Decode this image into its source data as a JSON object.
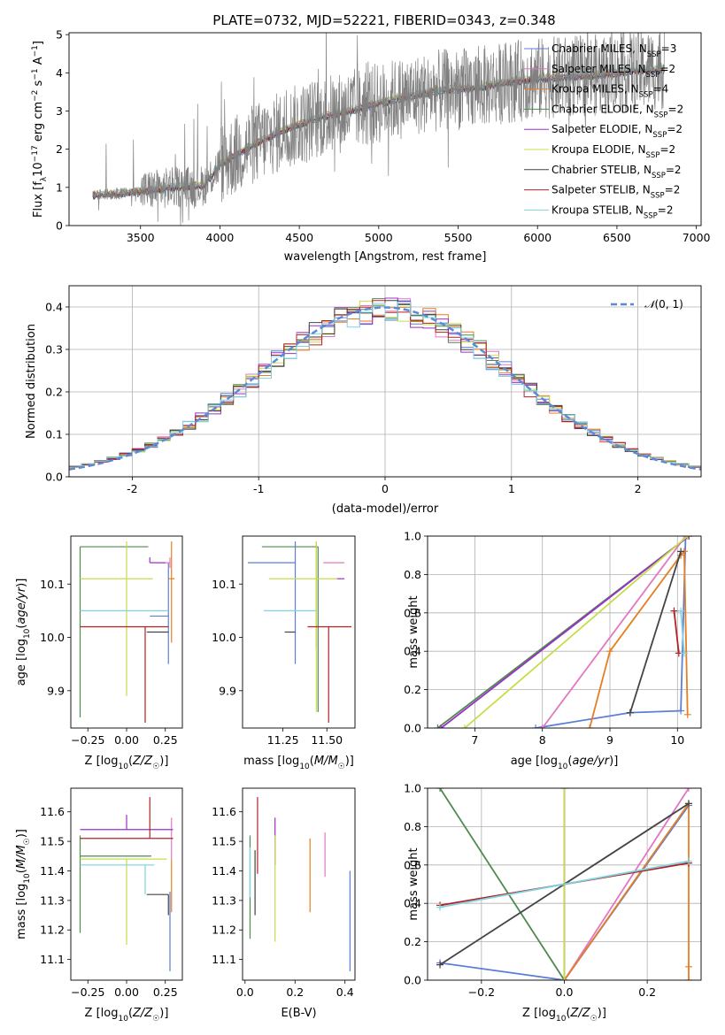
{
  "title": "PLATE=0732, MJD=52221, FIBERID=0343, z=0.348",
  "colors": {
    "Chabrier MILES": "#5b7fd6",
    "Salpeter MILES": "#e377c2",
    "Kroupa MILES": "#e67e22",
    "Chabrier ELODIE": "#4f8a4f",
    "Salpeter ELODIE": "#9b30c8",
    "Kroupa ELODIE": "#c8dc4a",
    "Chabrier STELIB": "#444444",
    "Salpeter STELIB": "#b22222",
    "Kroupa STELIB": "#7fd3e0",
    "data": "#808080",
    "normal": "#5b8ad6",
    "grid": "#b0b0b0"
  },
  "chart_data": [
    {
      "id": "spectrum",
      "type": "line",
      "title": "PLATE=0732, MJD=52221, FIBERID=0343, z=0.348",
      "xlabel": "wavelength [Angstrom, rest frame]",
      "ylabel": "Flux [f_λ 10^-17 erg cm^-2 s^-1 A^-1]",
      "xlim": [
        3050,
        7030
      ],
      "ylim": [
        0,
        5.05
      ],
      "xticks": [
        3500,
        4000,
        4500,
        5000,
        5500,
        6000,
        6500,
        7000
      ],
      "yticks": [
        0,
        1,
        2,
        3,
        4,
        5
      ],
      "grid": false,
      "legend_position": "top-right",
      "legend": [
        {
          "name": "Chabrier MILES",
          "nssp": "3"
        },
        {
          "name": "Salpeter MILES",
          "nssp": "2"
        },
        {
          "name": "Kroupa MILES",
          "nssp": "4"
        },
        {
          "name": "Chabrier ELODIE",
          "nssp": "2"
        },
        {
          "name": "Salpeter ELODIE",
          "nssp": "2"
        },
        {
          "name": "Kroupa ELODIE",
          "nssp": "2"
        },
        {
          "name": "Chabrier STELIB",
          "nssp": "2"
        },
        {
          "name": "Salpeter STELIB",
          "nssp": "2"
        },
        {
          "name": "Kroupa STELIB",
          "nssp": "2"
        }
      ],
      "data_range": [
        3200,
        6800
      ],
      "continuum": [
        [
          3200,
          0.8
        ],
        [
          3400,
          0.85
        ],
        [
          3500,
          0.9
        ],
        [
          3700,
          1.0
        ],
        [
          3900,
          1.05
        ],
        [
          4000,
          1.6
        ],
        [
          4200,
          2.1
        ],
        [
          4400,
          2.5
        ],
        [
          4600,
          2.8
        ],
        [
          4800,
          3.0
        ],
        [
          5000,
          3.2
        ],
        [
          5200,
          3.4
        ],
        [
          5400,
          3.55
        ],
        [
          5600,
          3.6
        ],
        [
          5800,
          3.75
        ],
        [
          6000,
          3.85
        ],
        [
          6200,
          3.9
        ],
        [
          6400,
          3.95
        ],
        [
          6600,
          4.05
        ],
        [
          6800,
          4.1
        ]
      ]
    },
    {
      "id": "residuals",
      "type": "histogram",
      "xlabel": "(data-model)/error",
      "ylabel": "Normed distribution",
      "xlim": [
        -2.5,
        2.5
      ],
      "ylim": [
        0,
        0.45
      ],
      "xticks": [
        -2,
        -1,
        0,
        1,
        2
      ],
      "yticks": [
        0.0,
        0.1,
        0.2,
        0.3,
        0.4
      ],
      "grid": true,
      "legend_position": "top-right",
      "legend": [
        "N(0,1)"
      ],
      "bin_width": 0.1
    },
    {
      "id": "age-vs-Z",
      "type": "scatter",
      "xlabel": "Z [log10(Z/Z☉)]",
      "ylabel": "age  [log10(age/yr)]",
      "xlim": [
        -0.36,
        0.36
      ],
      "ylim": [
        9.83,
        10.19
      ],
      "xticks": [
        -0.25,
        0.0,
        0.25
      ],
      "xtick_labels": [
        "−0.25",
        "0.00",
        "0.25"
      ],
      "yticks": [
        9.9,
        10.0,
        10.1
      ],
      "points": [
        {
          "name": "Chabrier MILES",
          "x": 0.27,
          "y": 10.04,
          "xerr": [
            0.12,
            0.0
          ],
          "yerr": [
            0.09,
            0.1
          ]
        },
        {
          "name": "Salpeter MILES",
          "x": 0.28,
          "y": 10.14,
          "xerr": [
            0.05,
            0.0
          ],
          "yerr": [
            0.01,
            0.01
          ]
        },
        {
          "name": "Kroupa MILES",
          "x": 0.29,
          "y": 10.11,
          "xerr": [
            0.02,
            0.02
          ],
          "yerr": [
            0.12,
            0.07
          ]
        },
        {
          "name": "Chabrier ELODIE",
          "x": -0.3,
          "y": 10.17,
          "xerr": [
            0.0,
            0.44
          ],
          "yerr": [
            0.32,
            0.0
          ]
        },
        {
          "name": "Salpeter ELODIE",
          "x": 0.15,
          "y": 10.14,
          "xerr": [
            0.0,
            0.1
          ],
          "yerr": [
            0.0,
            0.01
          ]
        },
        {
          "name": "Kroupa ELODIE",
          "x": 0.0,
          "y": 10.11,
          "xerr": [
            0.3,
            0.17
          ],
          "yerr": [
            0.22,
            0.07
          ]
        },
        {
          "name": "Chabrier STELIB",
          "x": 0.15,
          "y": 10.01,
          "xerr": [
            0.02,
            0.12
          ],
          "yerr": [
            0.0,
            0.0
          ]
        },
        {
          "name": "Salpeter STELIB",
          "x": 0.12,
          "y": 10.02,
          "xerr": [
            0.42,
            0.15
          ],
          "yerr": [
            0.18,
            0.0
          ]
        },
        {
          "name": "Kroupa STELIB",
          "x": 0.1,
          "y": 10.05,
          "xerr": [
            0.4,
            0.17
          ],
          "yerr": [
            0.0,
            0.0
          ]
        }
      ]
    },
    {
      "id": "age-vs-mass",
      "type": "scatter",
      "xlabel": "mass [log10(M/M☉)]",
      "ylabel": "",
      "xlim": [
        11.02,
        11.66
      ],
      "ylim": [
        9.83,
        10.19
      ],
      "xticks": [
        11.25,
        11.5
      ],
      "xtick_labels": [
        "11.25",
        "11.50"
      ],
      "yticks": [
        9.9,
        10.0,
        10.1
      ],
      "points": [
        {
          "name": "Chabrier MILES",
          "x": 11.32,
          "y": 10.14,
          "xerr": [
            0.27,
            0.0
          ],
          "yerr": [
            0.19,
            0.04
          ]
        },
        {
          "name": "Salpeter MILES",
          "x": 11.55,
          "y": 10.14,
          "xerr": [
            0.07,
            0.05
          ],
          "yerr": [
            0.0,
            0.0
          ]
        },
        {
          "name": "Kroupa MILES",
          "x": 11.44,
          "y": 10.11,
          "xerr": [
            0.0,
            0.0
          ],
          "yerr": [
            0.13,
            0.07
          ]
        },
        {
          "name": "Chabrier ELODIE",
          "x": 11.45,
          "y": 10.17,
          "xerr": [
            0.32,
            0.0
          ],
          "yerr": [
            0.31,
            0.0
          ]
        },
        {
          "name": "Salpeter ELODIE",
          "x": 11.55,
          "y": 10.11,
          "xerr": [
            0.0,
            0.05
          ],
          "yerr": [
            0.0,
            0.0
          ]
        },
        {
          "name": "Kroupa ELODIE",
          "x": 11.44,
          "y": 10.11,
          "xerr": [
            0.27,
            0.12
          ],
          "yerr": [
            0.25,
            0.07
          ]
        },
        {
          "name": "Chabrier STELIB",
          "x": 11.32,
          "y": 10.01,
          "xerr": [
            0.06,
            0.0
          ],
          "yerr": [
            0.0,
            0.0
          ]
        },
        {
          "name": "Salpeter STELIB",
          "x": 11.51,
          "y": 10.02,
          "xerr": [
            0.12,
            0.13
          ],
          "yerr": [
            0.18,
            0.0
          ]
        },
        {
          "name": "Kroupa STELIB",
          "x": 11.44,
          "y": 10.05,
          "xerr": [
            0.3,
            0.0
          ],
          "yerr": [
            0.0,
            0.0
          ]
        }
      ]
    },
    {
      "id": "mass-weight-vs-age",
      "type": "line",
      "xlabel": "age  [log10(age/yr)]",
      "ylabel": "mass weight",
      "xlim": [
        6.3,
        10.35
      ],
      "ylim": [
        0,
        1.0
      ],
      "xticks": [
        7,
        8,
        9,
        10
      ],
      "yticks": [
        0.0,
        0.2,
        0.4,
        0.6,
        0.8,
        1.0
      ],
      "grid": true,
      "series": [
        {
          "name": "Chabrier MILES",
          "x": [
            7.9,
            9.3,
            10.05,
            10.12
          ],
          "y": [
            0.0,
            0.08,
            0.09,
            1.0
          ]
        },
        {
          "name": "Salpeter MILES",
          "x": [
            8.0,
            10.12
          ],
          "y": [
            0.0,
            1.0
          ]
        },
        {
          "name": "Kroupa MILES",
          "x": [
            8.7,
            9.0,
            10.05,
            10.1,
            10.15
          ],
          "y": [
            0.0,
            0.4,
            0.9,
            0.92,
            0.07
          ]
        },
        {
          "name": "Chabrier ELODIE",
          "x": [
            6.45,
            10.17
          ],
          "y": [
            0.0,
            1.0
          ]
        },
        {
          "name": "Salpeter ELODIE",
          "x": [
            6.5,
            10.17
          ],
          "y": [
            0.0,
            1.0
          ]
        },
        {
          "name": "Kroupa ELODIE",
          "x": [
            6.85,
            10.15
          ],
          "y": [
            0.0,
            1.0
          ]
        },
        {
          "name": "Chabrier STELIB",
          "x": [
            9.3,
            10.05
          ],
          "y": [
            0.08,
            0.92
          ]
        },
        {
          "name": "Salpeter STELIB",
          "x": [
            9.95,
            10.02
          ],
          "y": [
            0.61,
            0.39
          ]
        },
        {
          "name": "Kroupa STELIB",
          "x": [
            10.05,
            10.1
          ],
          "y": [
            0.61,
            0.39
          ]
        }
      ]
    },
    {
      "id": "mass-vs-Z",
      "type": "scatter",
      "xlabel": "Z [log10(Z/Z☉)]",
      "ylabel": "mass [log10(M/M☉)]",
      "xlim": [
        -0.36,
        0.36
      ],
      "ylim": [
        11.03,
        11.68
      ],
      "xticks": [
        -0.25,
        0.0,
        0.25
      ],
      "xtick_labels": [
        "−0.25",
        "0.00",
        "0.25"
      ],
      "yticks": [
        11.1,
        11.2,
        11.3,
        11.4,
        11.5,
        11.6
      ],
      "points": [
        {
          "name": "Chabrier MILES",
          "x": 0.28,
          "y": 11.33,
          "xerr": [
            0.0,
            0.0
          ],
          "yerr": [
            0.27,
            0.0
          ]
        },
        {
          "name": "Salpeter MILES",
          "x": 0.29,
          "y": 11.44,
          "xerr": [
            0.0,
            0.0
          ],
          "yerr": [
            0.0,
            0.14
          ]
        },
        {
          "name": "Kroupa MILES",
          "x": 0.29,
          "y": 11.44,
          "xerr": [
            0.0,
            0.0
          ],
          "yerr": [
            0.18,
            0.0
          ]
        },
        {
          "name": "Chabrier ELODIE",
          "x": -0.3,
          "y": 11.45,
          "xerr": [
            0.0,
            0.46
          ],
          "yerr": [
            0.26,
            0.07
          ]
        },
        {
          "name": "Salpeter ELODIE",
          "x": 0.0,
          "y": 11.54,
          "xerr": [
            0.3,
            0.3
          ],
          "yerr": [
            0.0,
            0.05
          ]
        },
        {
          "name": "Kroupa ELODIE",
          "x": 0.0,
          "y": 11.44,
          "xerr": [
            0.3,
            0.26
          ],
          "yerr": [
            0.29,
            0.0
          ]
        },
        {
          "name": "Chabrier STELIB",
          "x": 0.27,
          "y": 11.32,
          "xerr": [
            0.14,
            0.0
          ],
          "yerr": [
            0.07,
            0.0
          ]
        },
        {
          "name": "Salpeter STELIB",
          "x": 0.15,
          "y": 11.51,
          "xerr": [
            0.45,
            0.15
          ],
          "yerr": [
            0.0,
            0.14
          ]
        },
        {
          "name": "Kroupa STELIB",
          "x": 0.12,
          "y": 11.42,
          "xerr": [
            0.42,
            0.06
          ],
          "yerr": [
            0.1,
            0.0
          ]
        }
      ]
    },
    {
      "id": "mass-vs-ebv",
      "type": "scatter",
      "xlabel": "E(B-V)",
      "ylabel": "",
      "xlim": [
        -0.01,
        0.44
      ],
      "ylim": [
        11.03,
        11.68
      ],
      "xticks": [
        0.0,
        0.2,
        0.4
      ],
      "xtick_labels": [
        "0.0",
        "0.2",
        "0.4"
      ],
      "yticks": [
        11.1,
        11.2,
        11.3,
        11.4,
        11.5,
        11.6
      ],
      "points": [
        {
          "name": "Chabrier MILES",
          "x": 0.42,
          "y": 11.25,
          "xerr": [
            0.0,
            0.0
          ],
          "yerr": [
            0.19,
            0.15
          ]
        },
        {
          "name": "Salpeter MILES",
          "x": 0.32,
          "y": 11.45,
          "xerr": [
            0.0,
            0.0
          ],
          "yerr": [
            0.07,
            0.08
          ]
        },
        {
          "name": "Kroupa MILES",
          "x": 0.26,
          "y": 11.39,
          "xerr": [
            0.0,
            0.0
          ],
          "yerr": [
            0.13,
            0.12
          ]
        },
        {
          "name": "Chabrier ELODIE",
          "x": 0.02,
          "y": 11.39,
          "xerr": [
            0.0,
            0.0
          ],
          "yerr": [
            0.22,
            0.13
          ]
        },
        {
          "name": "Salpeter ELODIE",
          "x": 0.12,
          "y": 11.47,
          "xerr": [
            0.0,
            0.0
          ],
          "yerr": [
            0.05,
            0.11
          ]
        },
        {
          "name": "Kroupa ELODIE",
          "x": 0.12,
          "y": 11.32,
          "xerr": [
            0.0,
            0.0
          ],
          "yerr": [
            0.16,
            0.2
          ]
        },
        {
          "name": "Chabrier STELIB",
          "x": 0.04,
          "y": 11.35,
          "xerr": [
            0.0,
            0.0
          ],
          "yerr": [
            0.1,
            0.12
          ]
        },
        {
          "name": "Salpeter STELIB",
          "x": 0.05,
          "y": 11.53,
          "xerr": [
            0.0,
            0.0
          ],
          "yerr": [
            0.14,
            0.12
          ]
        },
        {
          "name": "Kroupa STELIB",
          "x": 0.02,
          "y": 11.42,
          "xerr": [
            0.0,
            0.0
          ],
          "yerr": [
            0.11,
            0.06
          ]
        }
      ]
    },
    {
      "id": "mass-weight-vs-Z",
      "type": "line",
      "xlabel": "Z [log10(Z/Z☉)]",
      "ylabel": "mass weight",
      "xlim": [
        -0.33,
        0.33
      ],
      "ylim": [
        0,
        1.0
      ],
      "xticks": [
        -0.2,
        0.0,
        0.2
      ],
      "xtick_labels": [
        "−0.2",
        "0.0",
        "0.2"
      ],
      "yticks": [
        0.0,
        0.2,
        0.4,
        0.6,
        0.8,
        1.0
      ],
      "grid": true,
      "series": [
        {
          "name": "Chabrier MILES",
          "x": [
            -0.3,
            0.0,
            0.3
          ],
          "y": [
            0.09,
            0.0,
            0.91
          ]
        },
        {
          "name": "Salpeter MILES",
          "x": [
            0.0,
            0.3
          ],
          "y": [
            0.0,
            1.0
          ]
        },
        {
          "name": "Kroupa MILES",
          "x": [
            0.0,
            0.3,
            0.3,
            0.3
          ],
          "y": [
            0.0,
            0.92,
            0.07,
            0.0
          ]
        },
        {
          "name": "Chabrier ELODIE",
          "x": [
            -0.3,
            0.0
          ],
          "y": [
            1.0,
            0.0
          ]
        },
        {
          "name": "Salpeter ELODIE",
          "x": [
            0.0,
            0.0
          ],
          "y": [
            0.0,
            1.0
          ]
        },
        {
          "name": "Kroupa ELODIE",
          "x": [
            0.0,
            0.0
          ],
          "y": [
            0.0,
            1.0
          ]
        },
        {
          "name": "Chabrier STELIB",
          "x": [
            -0.3,
            0.3
          ],
          "y": [
            0.08,
            0.92
          ]
        },
        {
          "name": "Salpeter STELIB",
          "x": [
            -0.3,
            0.3
          ],
          "y": [
            0.39,
            0.61
          ]
        },
        {
          "name": "Kroupa STELIB",
          "x": [
            -0.3,
            0.3
          ],
          "y": [
            0.38,
            0.62
          ]
        }
      ]
    }
  ]
}
